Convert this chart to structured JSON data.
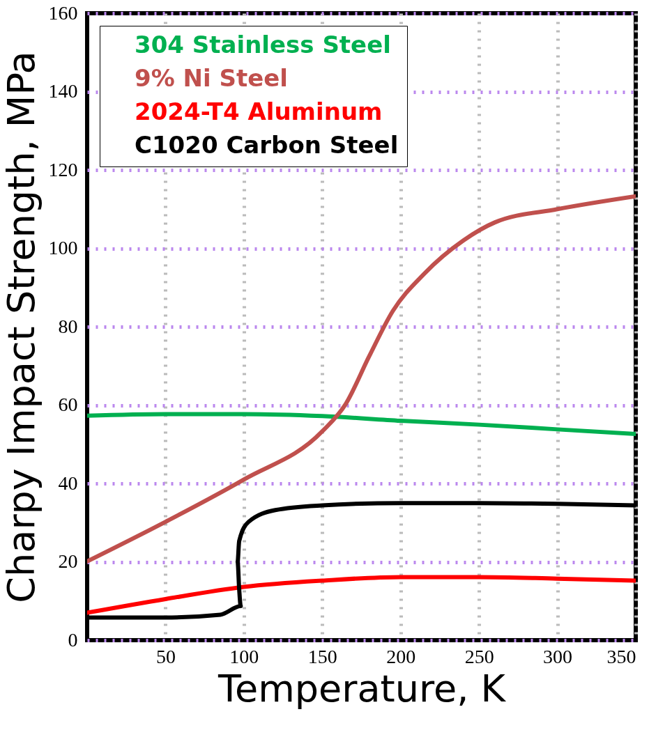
{
  "chart_data": {
    "type": "line",
    "xlabel": "Temperature, K",
    "ylabel": "Charpy Impact Strength, MPa",
    "xlim": [
      0,
      350
    ],
    "ylim": [
      0,
      160
    ],
    "xticks": [
      50,
      100,
      150,
      200,
      250,
      300,
      350
    ],
    "yticks": [
      0,
      20,
      40,
      60,
      80,
      100,
      120,
      140,
      160
    ],
    "grid": true,
    "legend": "top left",
    "marker": "none",
    "line_style": "solid",
    "series": [
      {
        "name": "304 Stainless Steel",
        "color": "#00b050",
        "x": [
          0,
          50,
          100,
          150,
          200,
          250,
          300,
          350
        ],
        "values": [
          57.3,
          57.7,
          57.7,
          57.2,
          56,
          55,
          53.8,
          52.6
        ]
      },
      {
        "name": "9% Ni Steel",
        "color": "#c0504d",
        "x": [
          0,
          50,
          100,
          150,
          165,
          180,
          195,
          215,
          240,
          260,
          300,
          350
        ],
        "values": [
          20.1,
          30.2,
          41,
          53.3,
          60.3,
          72.5,
          84,
          93.5,
          102,
          106.6,
          110,
          113.3
        ]
      },
      {
        "name": "2024-T4 Aluminum",
        "color": "#ff0000",
        "x": [
          0,
          50,
          100,
          150,
          200,
          250,
          300,
          350
        ],
        "values": [
          7,
          10.5,
          13.6,
          15.2,
          16.1,
          16.1,
          15.7,
          15.2
        ]
      },
      {
        "name": "C1020 Carbon Steel",
        "color": "#000000",
        "x": [
          0,
          50,
          85,
          98,
          97,
          96,
          97,
          103,
          120,
          150,
          200,
          250,
          300,
          350
        ],
        "values": [
          5.8,
          5.8,
          6.5,
          8.7,
          13,
          20,
          25.3,
          30.2,
          33.2,
          34.4,
          35,
          35,
          34.8,
          34.4
        ]
      }
    ]
  }
}
